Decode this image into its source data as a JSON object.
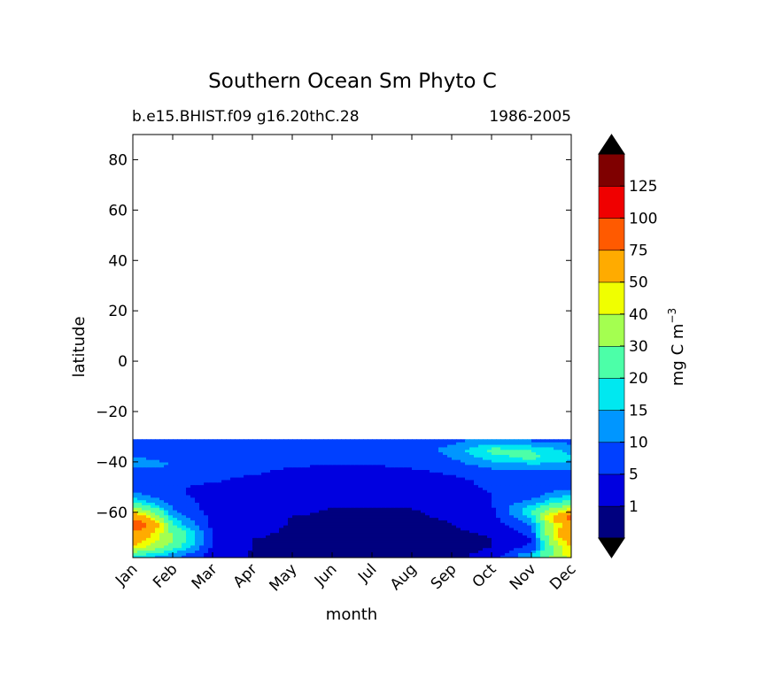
{
  "chart_data": {
    "type": "heatmap",
    "title": "Southern Ocean Sm Phyto C",
    "subtitle_left": "b.e15.BHIST.f09 g16.20thC.28",
    "subtitle_right": "1986-2005",
    "xlabel": "month",
    "ylabel": "latitude",
    "x_ticks": [
      "Jan",
      "Feb",
      "Mar",
      "Apr",
      "May",
      "Jun",
      "Jul",
      "Aug",
      "Sep",
      "Oct",
      "Nov",
      "Dec"
    ],
    "y_ticks": [
      80,
      60,
      40,
      20,
      0,
      -20,
      -40,
      -60
    ],
    "ylim": [
      -78,
      90
    ],
    "data_lat_range": [
      -78,
      -31
    ],
    "colorbar": {
      "label": "mg C m",
      "label_superscript": "−3",
      "levels": [
        0,
        1,
        5,
        10,
        15,
        20,
        30,
        40,
        50,
        75,
        100,
        125,
        150
      ],
      "tick_labels": [
        "1",
        "5",
        "10",
        "15",
        "20",
        "30",
        "40",
        "50",
        "75",
        "100",
        "125"
      ],
      "colors": [
        "#00007f",
        "#0000e0",
        "#0040ff",
        "#0096ff",
        "#00e8f0",
        "#4cffa8",
        "#a4ff50",
        "#f0ff00",
        "#ffab00",
        "#ff5a00",
        "#f00000",
        "#7f0000"
      ],
      "extend": "both",
      "extend_colors": [
        "#000000",
        "#000000"
      ]
    },
    "lat_rows": [
      -77,
      -74,
      -71,
      -68,
      -65,
      -62,
      -59,
      -56,
      -53,
      -50,
      -47,
      -44,
      -41,
      -38,
      -35,
      -32
    ],
    "month_cols": [
      "Jan",
      "Feb",
      "Mar",
      "Apr",
      "May",
      "Jun",
      "Jul",
      "Aug",
      "Sep",
      "Oct",
      "Nov",
      "Dec"
    ],
    "values": [
      [
        18,
        12,
        3,
        0.8,
        0.5,
        0.4,
        0.4,
        0.5,
        0.6,
        1.5,
        15,
        45
      ],
      [
        45,
        22,
        4,
        0.9,
        0.5,
        0.4,
        0.4,
        0.5,
        0.6,
        1,
        6,
        50
      ],
      [
        60,
        30,
        4,
        0.9,
        0.5,
        0.4,
        0.4,
        0.5,
        0.6,
        0.9,
        5,
        60
      ],
      [
        70,
        28,
        4,
        1.5,
        0.6,
        0.5,
        0.4,
        0.5,
        0.7,
        1.2,
        6,
        75
      ],
      [
        110,
        20,
        4,
        2,
        0.8,
        0.6,
        0.5,
        0.6,
        0.9,
        2,
        10,
        60
      ],
      [
        70,
        15,
        3.5,
        2,
        0.9,
        0.7,
        0.6,
        0.7,
        1.2,
        3,
        15,
        90
      ],
      [
        40,
        10,
        3,
        2,
        1.5,
        0.8,
        0.6,
        0.8,
        2,
        4,
        20,
        45
      ],
      [
        20,
        8,
        3,
        2.5,
        1.8,
        1.5,
        2,
        2,
        3,
        5,
        12,
        25
      ],
      [
        12,
        6,
        3,
        3,
        2.5,
        2,
        2,
        2.5,
        3,
        5,
        8,
        15
      ],
      [
        8,
        5.5,
        4,
        3.5,
        3,
        2.5,
        2.5,
        3,
        4,
        5.5,
        7,
        9
      ],
      [
        7,
        6,
        5.5,
        4,
        3,
        2.5,
        2.5,
        3,
        4,
        6,
        8,
        8
      ],
      [
        8,
        7,
        6,
        5.5,
        4,
        3,
        3,
        4,
        5.5,
        8,
        9,
        9
      ],
      [
        12,
        10,
        7,
        6,
        5.5,
        5,
        5,
        6,
        8,
        12,
        14,
        13
      ],
      [
        10,
        9,
        7,
        6,
        6,
        6,
        6,
        7,
        10,
        18,
        22,
        16
      ],
      [
        8,
        7,
        6,
        6,
        6,
        6,
        6,
        7,
        12,
        22,
        20,
        13
      ],
      [
        7,
        6,
        6,
        6,
        6,
        6,
        6,
        7,
        9,
        12,
        10,
        9
      ]
    ]
  }
}
